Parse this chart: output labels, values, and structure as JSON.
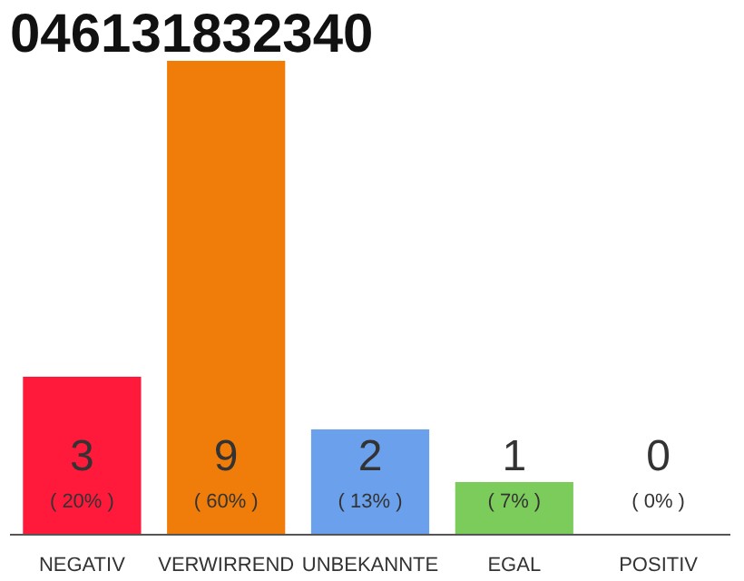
{
  "chart_data": {
    "type": "bar",
    "title": "046131832340",
    "categories": [
      "NEGATIV",
      "VERWIRREND",
      "UNBEKANNTE",
      "EGAL",
      "POSITIV"
    ],
    "values": [
      3,
      9,
      2,
      1,
      0
    ],
    "colors": [
      "#ff1a3c",
      "#f07d0a",
      "#6aa0ec",
      "#7ccc5c",
      "#b4b4b4"
    ],
    "tick_labels": "x",
    "grid": false,
    "value_labels": [
      "3\n( 20% )",
      "9\n( 60% )",
      "2\n( 13% )",
      "1\n( 7% )",
      "0\n( 0% )"
    ]
  }
}
